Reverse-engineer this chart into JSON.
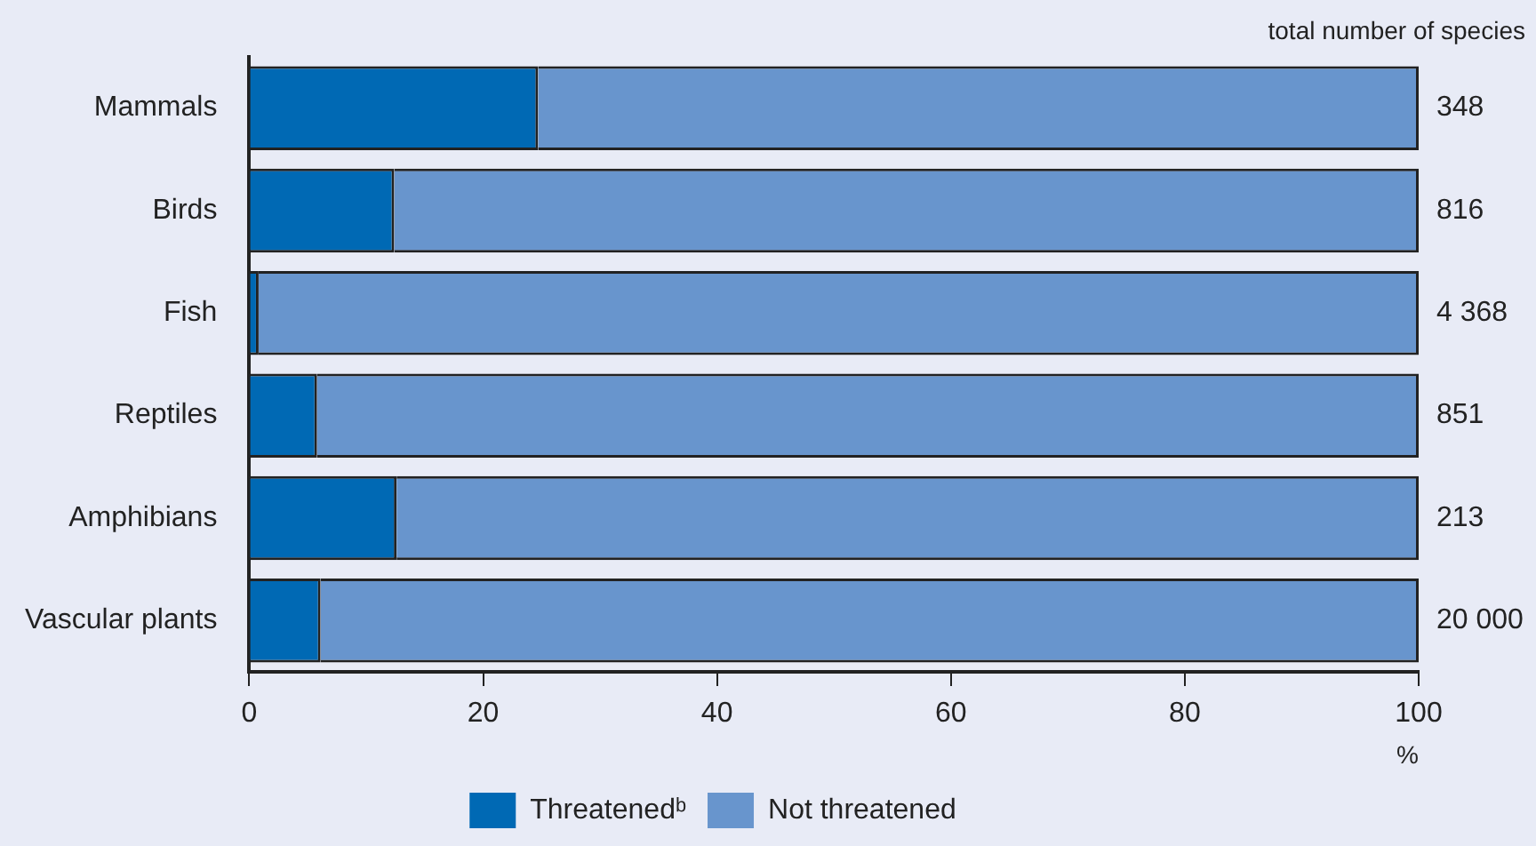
{
  "chart_data": {
    "type": "bar",
    "orientation": "horizontal",
    "stacked": true,
    "xlabel": "%",
    "categories": [
      "Mammals",
      "Birds",
      "Fish",
      "Reptiles",
      "Amphibians",
      "Vascular plants"
    ],
    "series": [
      {
        "name": "Threatenedᵇ",
        "color": "#0069b4",
        "values": [
          24.7,
          12.4,
          0.8,
          5.8,
          12.6,
          6.1
        ]
      },
      {
        "name": "Not threatened",
        "color": "#6895cd",
        "values": [
          75.3,
          87.6,
          99.2,
          94.2,
          87.4,
          93.9
        ]
      }
    ],
    "xlim": [
      0,
      100
    ],
    "xticks": [
      0,
      20,
      40,
      60,
      80,
      100
    ],
    "grid": false,
    "legend": "bottom",
    "annotations": [
      "total number of species",
      "348",
      "816",
      "4 368",
      "851",
      "213",
      "20 000"
    ]
  }
}
